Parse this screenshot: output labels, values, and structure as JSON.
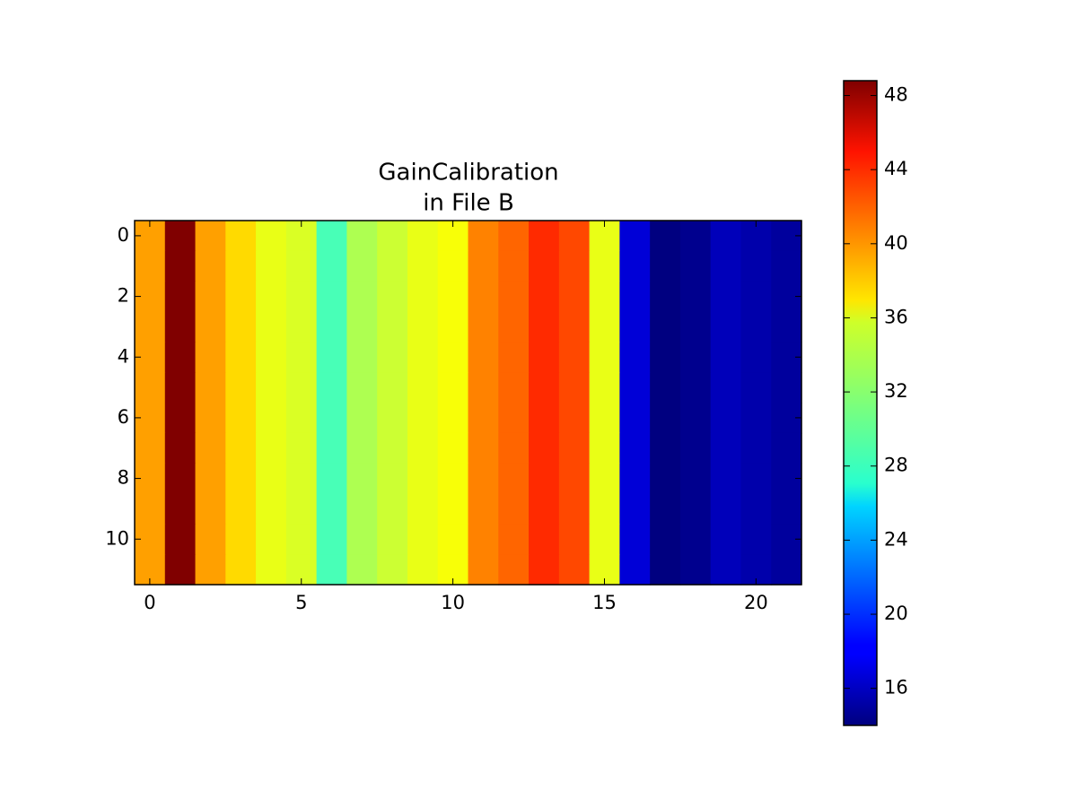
{
  "chart_data": {
    "type": "heatmap",
    "title": [
      "GainCalibration",
      "in File B"
    ],
    "colormap": "jet",
    "xlim": [
      -0.5,
      21.5
    ],
    "ylim": [
      11.5,
      -0.5
    ],
    "xticks": [
      0,
      5,
      10,
      15,
      20
    ],
    "yticks": [
      0,
      2,
      4,
      6,
      8,
      10
    ],
    "clim": [
      14,
      48.8
    ],
    "cticks": [
      16,
      20,
      24,
      28,
      32,
      36,
      40,
      44,
      48
    ],
    "z": [
      [
        39,
        48.8,
        39,
        37,
        35,
        34.5,
        29.5,
        33,
        34,
        35,
        35.5,
        40,
        41,
        43,
        42,
        35,
        17,
        14,
        14.5,
        16,
        15.5,
        15
      ],
      [
        39,
        48.8,
        39,
        37,
        35,
        34.5,
        29.5,
        33,
        34,
        35,
        35.5,
        40,
        41,
        43,
        42,
        35,
        17,
        14,
        14.5,
        16,
        15.5,
        15
      ],
      [
        39,
        48.8,
        39,
        37,
        35,
        34.5,
        29.5,
        33,
        34,
        35,
        35.5,
        40,
        41,
        43,
        42,
        35,
        17,
        14,
        14.5,
        16,
        15.5,
        15
      ],
      [
        39,
        48.8,
        39,
        37,
        35,
        34.5,
        29.5,
        33,
        34,
        35,
        35.5,
        40,
        41,
        43,
        42,
        35,
        17,
        14,
        14.5,
        16,
        15.5,
        15
      ],
      [
        39,
        48.8,
        39,
        37,
        35,
        34.5,
        29.5,
        33,
        34,
        35,
        35.5,
        40,
        41,
        43,
        42,
        35,
        17,
        14,
        14.5,
        16,
        15.5,
        15
      ],
      [
        39,
        48.8,
        39,
        37,
        35,
        34.5,
        29.5,
        33,
        34,
        35,
        35.5,
        40,
        41,
        43,
        42,
        35,
        17,
        14,
        14.5,
        16,
        15.5,
        15
      ],
      [
        39,
        48.8,
        39,
        37,
        35,
        34.5,
        29.5,
        33,
        34,
        35,
        35.5,
        40,
        41,
        43,
        42,
        35,
        17,
        14,
        14.5,
        16,
        15.5,
        15
      ],
      [
        39,
        48.8,
        39,
        37,
        35,
        34.5,
        29.5,
        33,
        34,
        35,
        35.5,
        40,
        41,
        43,
        42,
        35,
        17,
        14,
        14.5,
        16,
        15.5,
        15
      ],
      [
        39,
        48.8,
        39,
        37,
        35,
        34.5,
        29.5,
        33,
        34,
        35,
        35.5,
        40,
        41,
        43,
        42,
        35,
        17,
        14,
        14.5,
        16,
        15.5,
        15
      ],
      [
        39,
        48.8,
        39,
        37,
        35,
        34.5,
        29.5,
        33,
        34,
        35,
        35.5,
        40,
        41,
        43,
        42,
        35,
        17,
        14,
        14.5,
        16,
        15.5,
        15
      ],
      [
        39,
        48.8,
        39,
        37,
        35,
        34.5,
        29.5,
        33,
        34,
        35,
        35.5,
        40,
        41,
        43,
        42,
        35,
        17,
        14,
        14.5,
        16,
        15.5,
        15
      ],
      [
        39,
        48.8,
        39,
        37,
        35,
        34.5,
        29.5,
        33,
        34,
        35,
        35.5,
        40,
        41,
        43,
        42,
        35,
        17,
        14,
        14.5,
        16,
        15.5,
        15
      ]
    ]
  }
}
